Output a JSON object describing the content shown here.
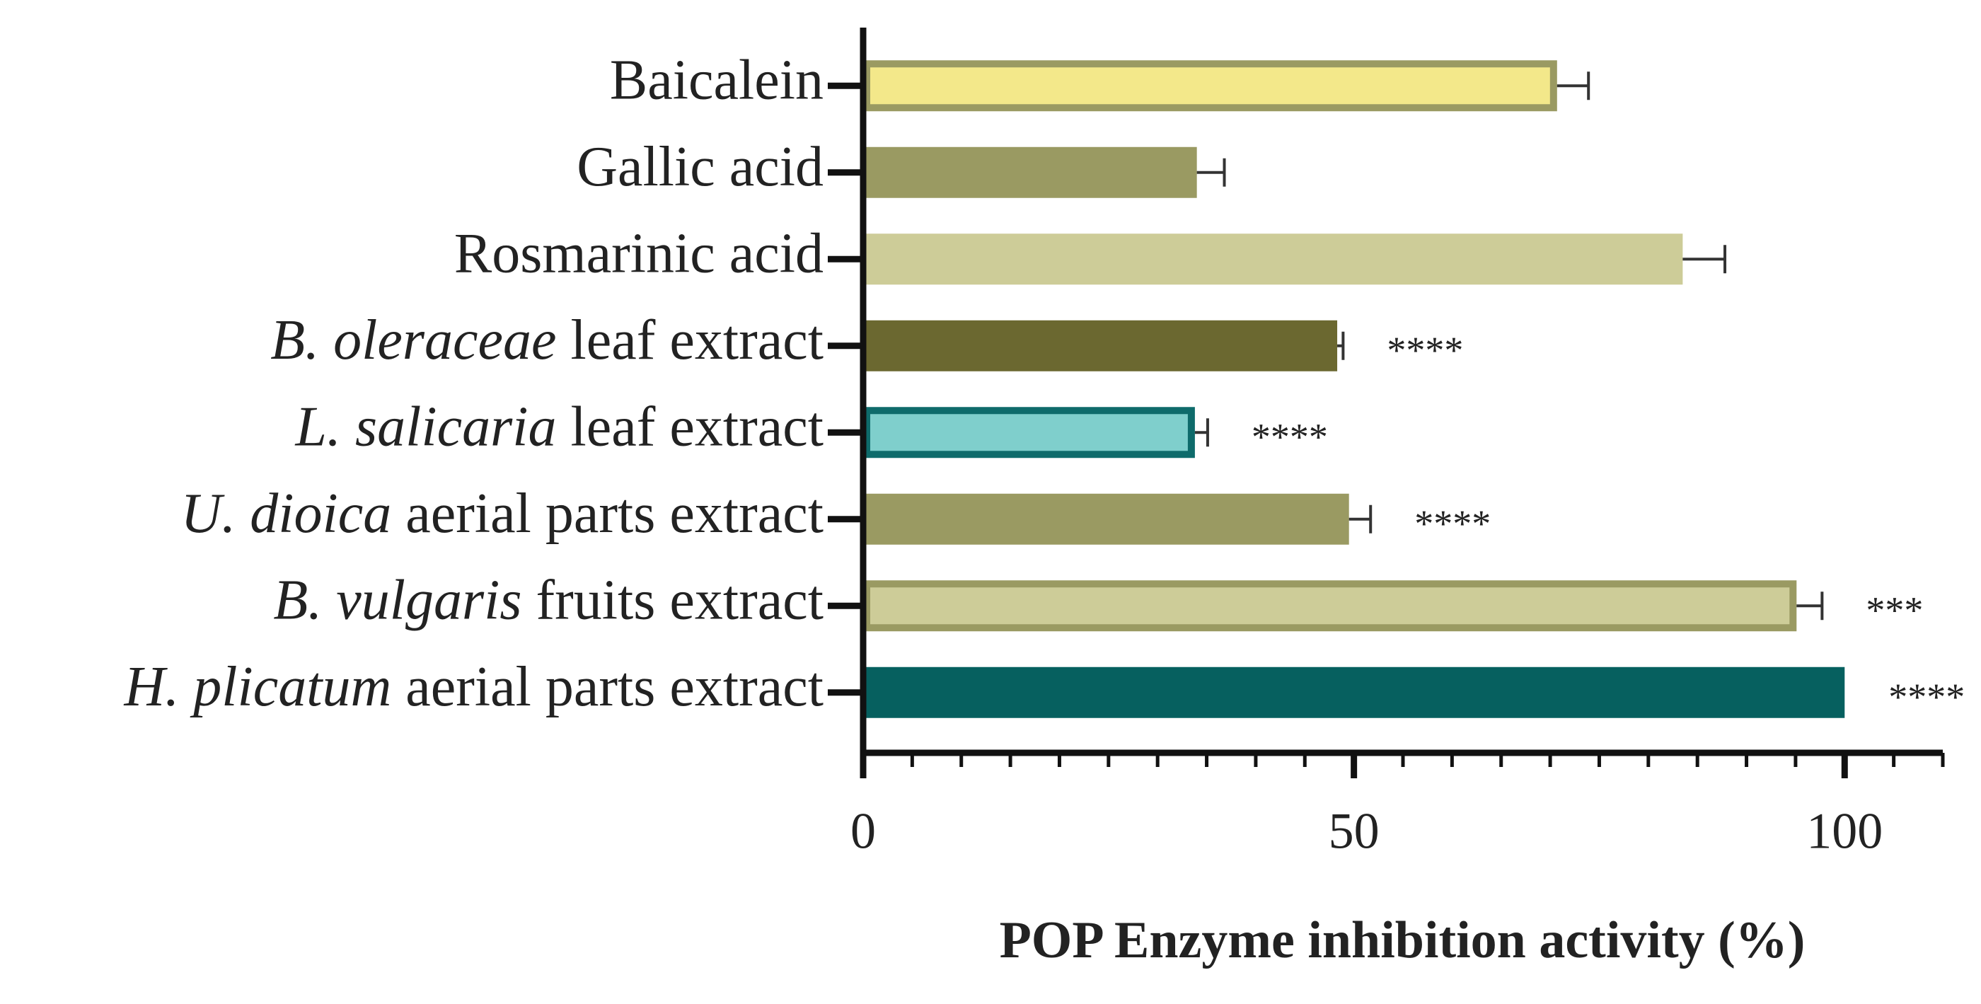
{
  "chart_data": {
    "type": "hbar",
    "categories": [
      "Baicalein",
      "Gallic acid",
      "Rosmarinic acid",
      {
        "italic": "B. oleraceae",
        "text": "leaf extract"
      },
      {
        "italic": "L. salicaria",
        "text": "leaf extract"
      },
      {
        "italic": "U. dioica",
        "text": "aerial parts extract"
      },
      {
        "italic": "B. vulgaris",
        "text": "fruits extract"
      },
      {
        "italic": "H. plicatum",
        "text": "aerial parts extract"
      }
    ],
    "values": [
      70.7,
      34.0,
      83.5,
      48.3,
      33.8,
      49.5,
      95.1,
      100
    ],
    "errors": [
      3.2,
      2.8,
      4.3,
      0.6,
      1.3,
      2.2,
      2.6,
      0
    ],
    "significance": [
      null,
      null,
      null,
      "****",
      "****",
      "****",
      "***",
      "****"
    ],
    "colors": [
      "#f3e88a",
      "#9a9a62",
      "#cdcc98",
      "#6b6830",
      "#7fcfcc",
      "#9a9a62",
      "#cdcc98",
      "#06605f"
    ],
    "edge_colors": [
      "#9a9a62",
      "#9a9a62",
      "#cdcc98",
      "#6b6830",
      "#0e6b6b",
      "#9a9a62",
      "#9a9a62",
      "#06605f"
    ],
    "xlim": [
      0,
      110
    ],
    "xticks": [
      0,
      50,
      100
    ],
    "xminorticks": [
      5,
      10,
      15,
      20,
      25,
      30,
      35,
      40,
      45,
      55,
      60,
      65,
      70,
      75,
      80,
      85,
      90,
      95,
      105,
      110
    ],
    "xlabel": "POP Enzyme inhibition activity (%)"
  }
}
